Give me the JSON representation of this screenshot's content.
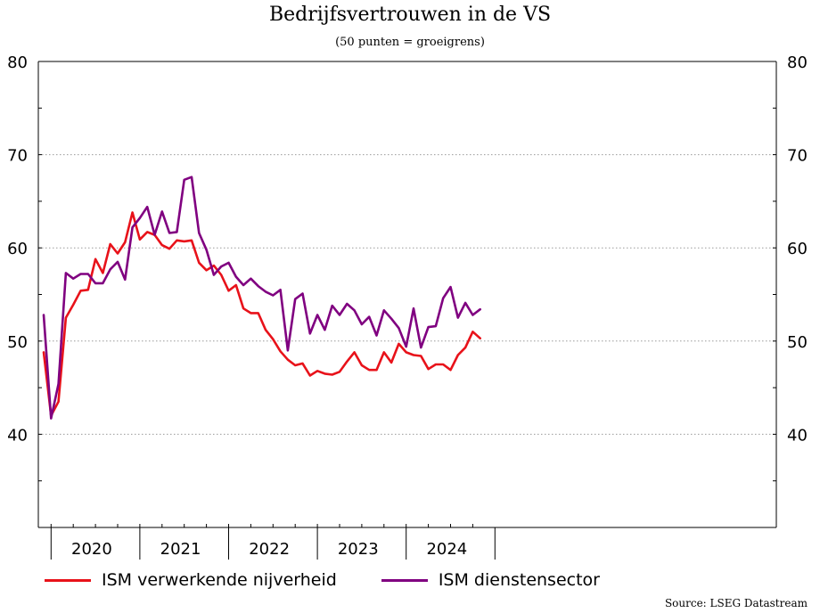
{
  "chart_data": {
    "type": "line",
    "title": "Bedrijfsvertrouwen in de VS",
    "subtitle": "(50 punten = groeigrens)",
    "source": "Source: LSEG Datastream",
    "ylim": [
      30,
      80
    ],
    "yticks": [
      40,
      50,
      60,
      70,
      80
    ],
    "yticks_labels": [
      "40",
      "50",
      "60",
      "70",
      "80"
    ],
    "year_labels": [
      "2020",
      "2021",
      "2022",
      "2023",
      "2024"
    ],
    "grid": true,
    "legend_position": "bottom",
    "x_start": "2019-12",
    "series": [
      {
        "name": "ISM verwerkende nijverheid",
        "color": "#e8121a",
        "values": [
          48.8,
          42.0,
          43.5,
          52.5,
          53.9,
          55.4,
          55.5,
          58.8,
          57.3,
          60.4,
          59.4,
          60.6,
          63.8,
          60.9,
          61.7,
          61.4,
          60.3,
          59.9,
          60.8,
          60.7,
          60.8,
          58.4,
          57.6,
          58.1,
          57.1,
          55.4,
          56.0,
          53.5,
          53.0,
          53.0,
          51.2,
          50.2,
          48.9,
          48.0,
          47.4,
          47.6,
          46.3,
          46.8,
          46.5,
          46.4,
          46.7,
          47.8,
          48.8,
          47.4,
          46.9,
          46.9,
          48.8,
          47.7,
          49.7,
          48.8,
          48.5,
          48.4,
          47.0,
          47.5,
          47.5,
          46.9,
          48.5,
          49.3,
          51.0,
          50.3
        ]
      },
      {
        "name": "ISM dienstensector",
        "color": "#800080",
        "values": [
          52.8,
          41.7,
          45.4,
          57.3,
          56.7,
          57.2,
          57.2,
          56.2,
          56.2,
          57.7,
          58.5,
          56.6,
          62.2,
          63.2,
          64.4,
          61.4,
          63.9,
          61.6,
          61.7,
          67.3,
          67.6,
          61.6,
          59.8,
          57.1,
          58.0,
          58.4,
          56.9,
          56.0,
          56.7,
          55.9,
          55.3,
          54.9,
          55.5,
          49.0,
          54.5,
          55.1,
          50.8,
          52.8,
          51.2,
          53.8,
          52.8,
          54.0,
          53.3,
          51.8,
          52.6,
          50.6,
          53.3,
          52.4,
          51.4,
          49.4,
          53.5,
          49.3,
          51.5,
          51.6,
          54.6,
          55.8,
          52.5,
          54.1,
          52.8,
          53.4
        ]
      }
    ]
  }
}
